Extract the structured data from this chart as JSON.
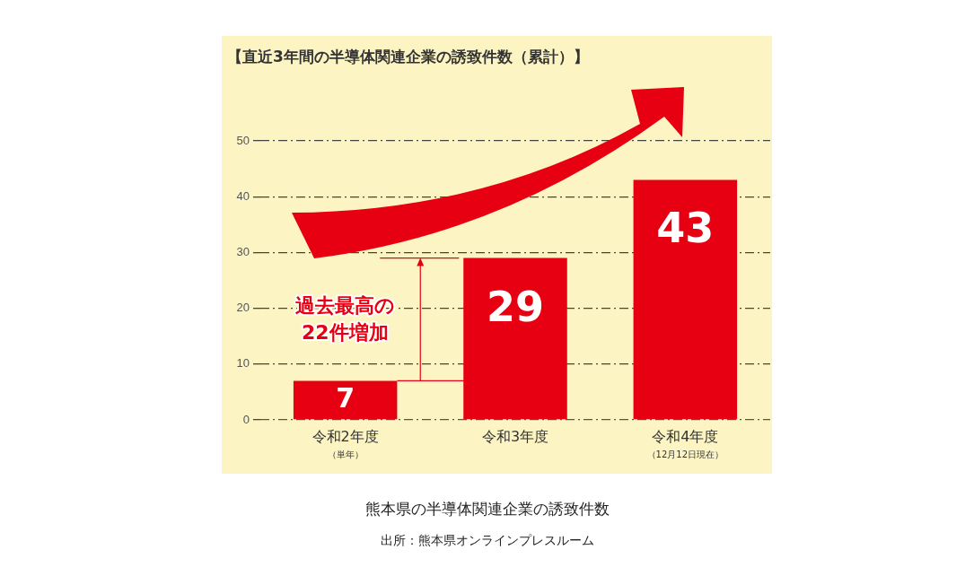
{
  "chart_data": {
    "type": "bar",
    "title": "【直近3年間の半導体関連企業の誘致件数（累計）】",
    "categories": [
      "令和2年度（単年）",
      "令和3年度",
      "令和4年度（12月12日現在）"
    ],
    "values": [
      7,
      29,
      43
    ],
    "color": "#e60012",
    "data_labels": true,
    "ylim": [
      0,
      50
    ],
    "yticks": [
      0,
      10,
      20,
      30,
      40,
      50
    ],
    "grid": "y",
    "legend": false,
    "annotations": [
      "過去最高の\n22件増加",
      "熊本県の半導体関連企業の誘致件数",
      "出所：熊本県オンラインプレスルーム"
    ]
  }
}
